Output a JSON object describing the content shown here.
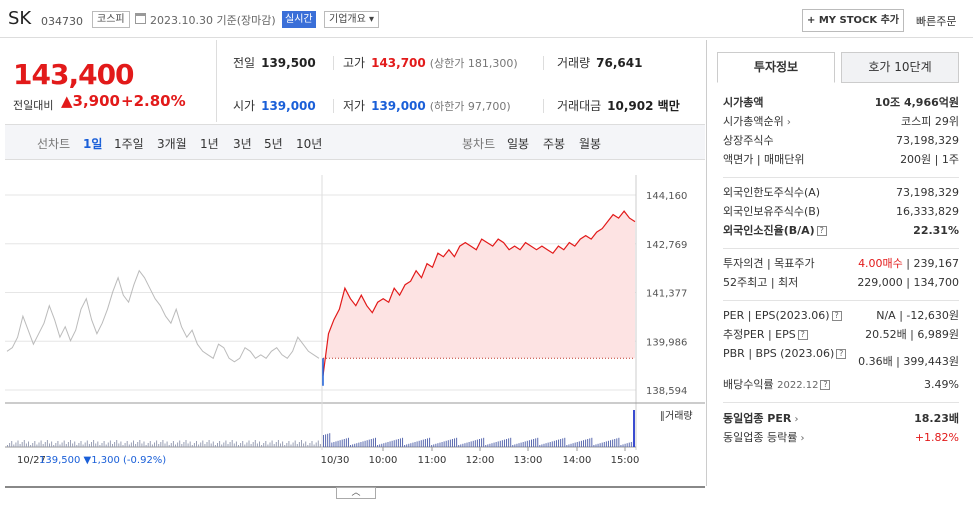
{
  "header": {
    "name": "SK",
    "code": "034730",
    "market": "코스피",
    "date": "2023.10.30 기준(장마감)",
    "realtime": "실시간",
    "company_info": "기업개요",
    "mystock_button": "+ MY STOCK 추가",
    "quick_order": "빠른주문"
  },
  "price": {
    "current": "143,400",
    "prev_label": "전일대비",
    "change": "▲3,900",
    "change_pct": "+2.80%"
  },
  "summary": {
    "prev_close_label": "전일",
    "prev_close": "139,500",
    "high_label": "고가",
    "high": "143,700",
    "upper_limit": "(상한가 181,300)",
    "volume_label": "거래량",
    "volume": "76,641",
    "open_label": "시가",
    "open": "139,000",
    "low_label": "저가",
    "low": "139,000",
    "lower_limit": "(하한가 97,700)",
    "amount_label": "거래대금",
    "amount": "10,902 백만"
  },
  "period_bar": {
    "line_label": "선차트",
    "line_periods": [
      "1일",
      "1주일",
      "3개월",
      "1년",
      "3년",
      "5년",
      "10년"
    ],
    "candle_label": "봉차트",
    "candle_periods": [
      "일봉",
      "주봉",
      "월봉"
    ]
  },
  "chart_data": {
    "type": "line",
    "y_ticks": [
      "144,160",
      "142,769",
      "141,377",
      "139,986",
      "138,594"
    ],
    "ylim": [
      138594,
      144160
    ],
    "x_labels": [
      "10/27",
      "10/30",
      "10:00",
      "11:00",
      "12:00",
      "13:00",
      "14:00",
      "15:00"
    ],
    "volume_label": "거래량",
    "footer_prev": "10/27",
    "footer_prev_close": "139,500",
    "footer_prev_change": "▼1,300 (-0.92%)",
    "reference_price": 139500,
    "prev_day_series": [
      139700,
      139800,
      140100,
      140700,
      140300,
      139900,
      140200,
      140500,
      141000,
      140600,
      140100,
      140400,
      140000,
      140300,
      140900,
      141200,
      140600,
      140200,
      140500,
      140900,
      141400,
      141800,
      141300,
      141100,
      141600,
      142000,
      141800,
      141500,
      141200,
      141000,
      140700,
      140500,
      140900,
      140400,
      140100,
      140300,
      139900,
      139700,
      139600,
      139500,
      139900,
      139800,
      139500,
      139400,
      139500,
      139800,
      139700,
      139500,
      139600,
      139500,
      139700,
      139800,
      139600,
      139500,
      139700,
      140100,
      139900,
      139700,
      139600,
      139500
    ],
    "today_series": [
      139000,
      140200,
      140600,
      140900,
      141500,
      141200,
      141000,
      141300,
      141000,
      140800,
      141100,
      141200,
      141100,
      141500,
      141300,
      141600,
      141700,
      142000,
      141800,
      142200,
      142100,
      142500,
      142400,
      142600,
      142400,
      142700,
      142800,
      142700,
      142600,
      142900,
      142800,
      142700,
      142900,
      142800,
      142600,
      142700,
      142600,
      142800,
      142700,
      142600,
      142700,
      142600,
      142500,
      142700,
      142600,
      142800,
      142700,
      142900,
      143000,
      142900,
      143100,
      143200,
      143400,
      143600,
      143500,
      143700,
      143500,
      143400
    ],
    "volume_today_peak": 76641
  },
  "right_panel": {
    "tabs": [
      "투자정보",
      "호가 10단계"
    ],
    "market_cap_label": "시가총액",
    "market_cap": "10조 4,966억원",
    "cap_rank_label": "시가총액순위",
    "cap_rank": "코스피 29위",
    "listed_label": "상장주식수",
    "listed": "73,198,329",
    "face_label": "액면가 | 매매단위",
    "face": "200원 | 1주",
    "foreign_limit_label": "외국인한도주식수(A)",
    "foreign_limit": "73,198,329",
    "foreign_own_label": "외국인보유주식수(B)",
    "foreign_own": "16,333,829",
    "foreign_rate_label": "외국인소진율(B/A)",
    "foreign_rate": "22.31%",
    "opinion_label": "투자의견 | 목표주가",
    "opinion": "4.00매수",
    "target": "239,167",
    "w52_label": "52주최고 | 최저",
    "w52": "229,000 | 134,700",
    "per_label": "PER | EPS(2023.06)",
    "per": "N/A | -12,630원",
    "est_label": "추정PER | EPS",
    "est": "20.52배 | 6,989원",
    "pbr_label": "PBR | BPS (2023.06)",
    "pbr": "0.36배 | 399,443원",
    "div_label": "배당수익률",
    "div_date": "2022.12",
    "div": "3.49%",
    "ind_per_label": "동일업종 PER",
    "ind_per": "18.23배",
    "ind_rate_label": "동일업종 등락률",
    "ind_rate": "+1.82%"
  }
}
